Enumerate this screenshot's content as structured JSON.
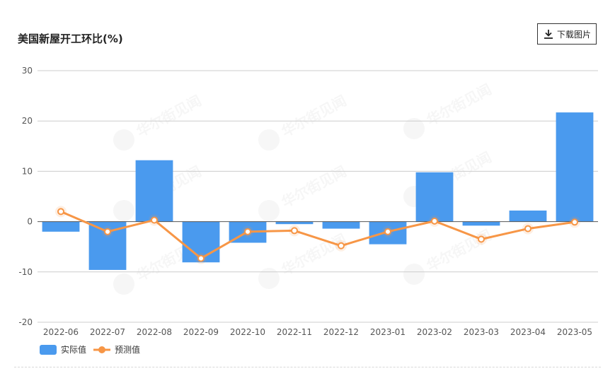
{
  "title": "美国新屋开工环比(%)",
  "toolbar": {
    "download_label": "下载图片",
    "download_icon": "download-icon"
  },
  "watermark": {
    "text": "华尔街见闻"
  },
  "colors": {
    "bar": "#4A9AEE",
    "line": "#F79646",
    "grid": "#cccccc",
    "zero_line": "#555555"
  },
  "chart_data": {
    "type": "bar",
    "categories": [
      "2022-06",
      "2022-07",
      "2022-08",
      "2022-09",
      "2022-10",
      "2022-11",
      "2022-12",
      "2023-01",
      "2023-02",
      "2023-03",
      "2023-04",
      "2023-05"
    ],
    "series": [
      {
        "name": "实际值",
        "type": "bar",
        "values": [
          -2.0,
          -9.6,
          12.2,
          -8.1,
          -4.2,
          -0.5,
          -1.4,
          -4.5,
          9.8,
          -0.8,
          2.2,
          21.7
        ]
      },
      {
        "name": "预测值",
        "type": "line",
        "values": [
          2.0,
          -2.0,
          0.3,
          -7.3,
          -2.0,
          -1.8,
          -4.8,
          -2.0,
          0.1,
          -3.5,
          -1.4,
          -0.1
        ]
      }
    ],
    "yticks": [
      30,
      20,
      10,
      0,
      -10,
      -20
    ],
    "ylim": [
      -20,
      30
    ],
    "grid": true,
    "legend_position": "bottom-left"
  }
}
